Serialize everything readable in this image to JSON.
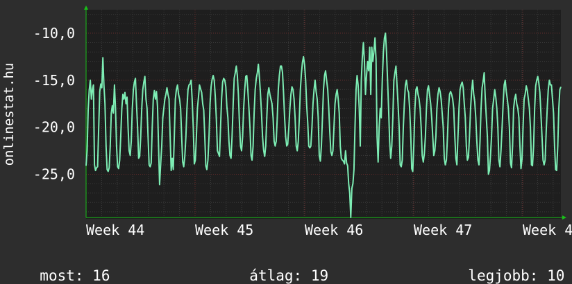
{
  "chart_data": {
    "type": "line",
    "ylabel": "onlinestat.hu",
    "ylim": [
      -29.6,
      -7.5
    ],
    "y_ticks": [
      -10.0,
      -15.0,
      -20.0,
      -25.0
    ],
    "y_tick_labels": [
      "-10,0",
      "-15,0",
      "-20,0",
      "-25,0"
    ],
    "x_tick_labels": [
      "Week 44",
      "Week 45",
      "Week 46",
      "Week 47",
      "Week 4"
    ],
    "grid": true,
    "colors": {
      "background": "#2d2d2d",
      "plot_background": "#1e1e1e",
      "line": "#7dedb4",
      "minor_grid": "#3a3a3a",
      "major_grid": "#6a2a2a",
      "axis_arrow": "#18c018",
      "text": "#ffffff"
    },
    "series": [
      {
        "values": [
          -24.1,
          -22.5,
          -18.2,
          -16.1,
          -15.0,
          -17.0,
          -16.0,
          -15.5,
          -24.0,
          -24.6,
          -24.3,
          -24.2,
          -20.0,
          -16.2,
          -15.4,
          -15.8,
          -12.6,
          -15.5,
          -17.5,
          -22.0,
          -24.5,
          -24.7,
          -24.3,
          -22.0,
          -18.5,
          -17.7,
          -18.5,
          -15.5,
          -18.0,
          -22.0,
          -24.2,
          -24.4,
          -23.5,
          -21.0,
          -18.0,
          -16.5,
          -17.0,
          -16.3,
          -17.5,
          -16.8,
          -20.0,
          -22.5,
          -23.0,
          -21.5,
          -18.0,
          -16.0,
          -15.2,
          -14.8,
          -17.5,
          -20.0,
          -23.3,
          -23.1,
          -21.0,
          -18.0,
          -16.0,
          -15.2,
          -14.6,
          -17.0,
          -18.0,
          -21.0,
          -24.0,
          -24.2,
          -23.8,
          -20.0,
          -17.0,
          -16.1,
          -17.0,
          -16.2,
          -17.8,
          -22.0,
          -26.1,
          -24.0,
          -22.0,
          -19.0,
          -18.0,
          -17.0,
          -16.5,
          -15.8,
          -16.5,
          -17.0,
          -21.0,
          -24.6,
          -23.3,
          -24.5,
          -21.0,
          -17.0,
          -16.0,
          -15.5,
          -16.5,
          -17.0,
          -18.0,
          -21.0,
          -23.7,
          -24.2,
          -23.1,
          -21.0,
          -18.0,
          -16.0,
          -15.5,
          -15.4,
          -15.0,
          -17.0,
          -20.0,
          -23.9,
          -23.5,
          -21.0,
          -18.0,
          -16.8,
          -15.5,
          -15.9,
          -16.3,
          -17.5,
          -18.2,
          -21.0,
          -24.1,
          -24.5,
          -23.5,
          -21.0,
          -17.5,
          -15.7,
          -14.9,
          -14.5,
          -15.0,
          -16.7,
          -19.0,
          -22.5,
          -22.8,
          -23.1,
          -20.0,
          -17.0,
          -15.2,
          -14.8,
          -15.0,
          -15.7,
          -17.8,
          -19.0,
          -21.5,
          -23.0,
          -23.3,
          -21.0,
          -17.5,
          -14.8,
          -14.2,
          -13.5,
          -14.5,
          -16.5,
          -19.5,
          -22.0,
          -22.5,
          -21.0,
          -18.0,
          -16.0,
          -14.6,
          -14.5,
          -16.0,
          -18.0,
          -20.0,
          -23.0,
          -23.5,
          -22.0,
          -18.5,
          -16.0,
          -14.8,
          -14.2,
          -13.3,
          -14.7,
          -16.4,
          -18.5,
          -21.0,
          -22.4,
          -23.1,
          -22.0,
          -19.0,
          -16.5,
          -15.8,
          -16.5,
          -17.0,
          -17.5,
          -19.0,
          -21.5,
          -22.0,
          -21.5,
          -19.0,
          -16.0,
          -14.5,
          -13.5,
          -13.5,
          -14.2,
          -16.4,
          -19.0,
          -21.0,
          -22.0,
          -21.8,
          -20.0,
          -18.0,
          -16.5,
          -15.7,
          -16.0,
          -17.0,
          -19.0,
          -22.0,
          -22.5,
          -21.5,
          -19.0,
          -16.0,
          -14.3,
          -13.1,
          -12.5,
          -13.4,
          -15.0,
          -17.7,
          -19.5,
          -22.0,
          -22.2,
          -22.0,
          -20.0,
          -17.5,
          -16.0,
          -15.0,
          -16.2,
          -17.0,
          -19.0,
          -23.0,
          -23.6,
          -22.0,
          -19.0,
          -16.0,
          -14.5,
          -14.0,
          -15.0,
          -16.0,
          -18.0,
          -20.5,
          -22.6,
          -23.0,
          -22.5,
          -20.0,
          -17.5,
          -16.5,
          -16.0,
          -17.0,
          -18.5,
          -22.0,
          -23.3,
          -23.5,
          -23.6,
          -23.9,
          -22.5,
          -23.8,
          -24.1,
          -26.0,
          -27.0,
          -29.6,
          -26.5,
          -26.0,
          -24.5,
          -20.0,
          -16.0,
          -14.5,
          -15.5,
          -18.0,
          -22.0,
          -15.0,
          -12.5,
          -11.0,
          -13.0,
          -16.5,
          -14.5,
          -13.0,
          -14.0,
          -11.5,
          -16.5,
          -11.5,
          -13.0,
          -12.0,
          -10.5,
          -12.8,
          -21.0,
          -23.7,
          -20.0,
          -18.0,
          -19.0,
          -15.0,
          -12.0,
          -10.5,
          -10.0,
          -12.0,
          -15.0,
          -18.0,
          -21.5,
          -23.3,
          -22.0,
          -19.0,
          -15.0,
          -14.2,
          -13.5,
          -15.5,
          -17.5,
          -20.0,
          -24.0,
          -24.2,
          -23.5,
          -20.0,
          -17.5,
          -15.5,
          -15.0,
          -16.0,
          -16.3,
          -18.0,
          -20.5,
          -24.4,
          -24.7,
          -22.0,
          -18.0,
          -16.0,
          -15.7,
          -16.5,
          -17.0,
          -18.0,
          -20.0,
          -23.0,
          -23.7,
          -22.8,
          -21.0,
          -18.0,
          -16.0,
          -15.6,
          -16.5,
          -17.5,
          -19.0,
          -21.0,
          -23.0,
          -22.5,
          -21.0,
          -18.0,
          -16.5,
          -15.8,
          -16.2,
          -17.0,
          -18.5,
          -20.0,
          -23.3,
          -24.0,
          -23.5,
          -21.0,
          -18.0,
          -16.5,
          -16.2,
          -16.5,
          -17.0,
          -18.0,
          -21.0,
          -23.3,
          -24.0,
          -21.0,
          -18.0,
          -16.0,
          -15.5,
          -15.2,
          -15.8,
          -17.5,
          -19.0,
          -22.0,
          -23.5,
          -23.2,
          -21.0,
          -18.0,
          -16.2,
          -15.0,
          -16.5,
          -17.3,
          -19.0,
          -21.5,
          -23.5,
          -24.0,
          -21.5,
          -18.0,
          -15.8,
          -15.1,
          -14.2,
          -16.8,
          -19.0,
          -21.0,
          -25.0,
          -24.6,
          -23.0,
          -21.0,
          -18.0,
          -17.0,
          -16.0,
          -16.8,
          -18.0,
          -20.0,
          -23.5,
          -24.2,
          -22.5,
          -20.0,
          -17.5,
          -15.5,
          -15.0,
          -16.2,
          -17.0,
          -18.0,
          -20.0,
          -23.8,
          -24.3,
          -22.0,
          -18.0,
          -17.0,
          -16.5,
          -17.5,
          -18.0,
          -19.0,
          -22.0,
          -24.4,
          -23.4,
          -20.0,
          -17.0,
          -16.5,
          -15.6,
          -16.1,
          -17.0,
          -18.0,
          -20.0,
          -24.0,
          -24.1,
          -22.0,
          -18.0,
          -15.6,
          -15.0,
          -14.6,
          -15.3,
          -16.3,
          -18.5,
          -21.0,
          -23.5,
          -24.0,
          -23.5,
          -20.5,
          -18.0,
          -16.0,
          -15.0,
          -15.5,
          -15.5,
          -17.0,
          -18.5,
          -22.0,
          -24.5,
          -24.6,
          -22.0,
          -18.0,
          -16.0,
          -15.7
        ]
      }
    ]
  },
  "footer": {
    "current_label": "most:",
    "current_value": "16",
    "average_label": "átlag:",
    "average_value": "19",
    "best_label": "legjobb:",
    "best_value": "10"
  }
}
